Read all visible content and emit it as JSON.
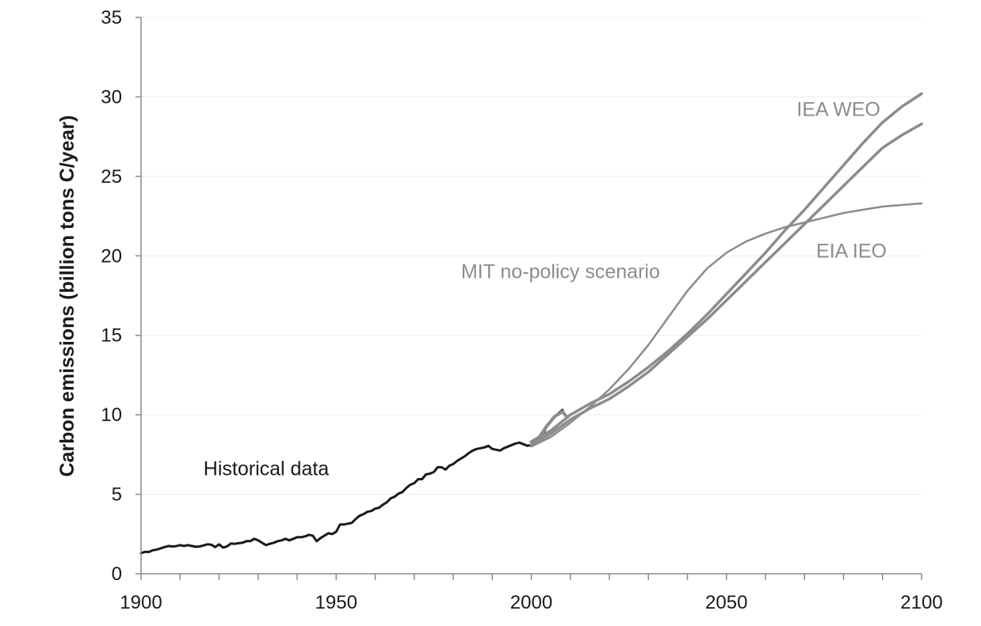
{
  "chart_data": {
    "type": "line",
    "title": "",
    "xlabel": "",
    "ylabel": "Carbon emissions (billion tons C/year)",
    "xlim": [
      1900,
      2100
    ],
    "ylim": [
      0,
      35
    ],
    "x_ticks": [
      1900,
      1950,
      2000,
      2050,
      2100
    ],
    "y_ticks": [
      0,
      5,
      10,
      15,
      20,
      25,
      30,
      35
    ],
    "grid": true,
    "legend": "none",
    "annotations": [
      {
        "text": "Historical data",
        "x": 1916,
        "y": 6.2,
        "color": "#1a1a1a"
      },
      {
        "text": "MIT no-policy scenario",
        "x": 1982,
        "y": 18.6,
        "color": "#8c8c8c"
      },
      {
        "text": "IEA WEO",
        "x": 2068,
        "y": 28.8,
        "color": "#8c8c8c"
      },
      {
        "text": "EIA IEO",
        "x": 2073,
        "y": 19.9,
        "color": "#8c8c8c"
      }
    ],
    "series": [
      {
        "color": "#1a1a1a",
        "stroke_width": 3,
        "x": [
          1900,
          1901,
          1902,
          1903,
          1904,
          1905,
          1906,
          1907,
          1908,
          1909,
          1910,
          1911,
          1912,
          1913,
          1914,
          1915,
          1916,
          1917,
          1918,
          1919,
          1920,
          1921,
          1922,
          1923,
          1924,
          1925,
          1926,
          1927,
          1928,
          1929,
          1930,
          1931,
          1932,
          1933,
          1934,
          1935,
          1936,
          1937,
          1938,
          1939,
          1940,
          1941,
          1942,
          1943,
          1944,
          1945,
          1946,
          1947,
          1948,
          1949,
          1950,
          1951,
          1952,
          1953,
          1954,
          1955,
          1956,
          1957,
          1958,
          1959,
          1960,
          1961,
          1962,
          1963,
          1964,
          1965,
          1966,
          1967,
          1968,
          1969,
          1970,
          1971,
          1972,
          1973,
          1974,
          1975,
          1976,
          1977,
          1978,
          1979,
          1980,
          1981,
          1982,
          1983,
          1984,
          1985,
          1986,
          1987,
          1988,
          1989,
          1990,
          1991,
          1992,
          1993,
          1994,
          1995,
          1996,
          1997,
          1998,
          1999,
          2000,
          2001,
          2002,
          2003,
          2004,
          2005,
          2006,
          2007,
          2008
        ],
        "y": [
          1.3,
          1.38,
          1.37,
          1.48,
          1.52,
          1.6,
          1.68,
          1.75,
          1.72,
          1.74,
          1.8,
          1.75,
          1.8,
          1.75,
          1.7,
          1.72,
          1.78,
          1.85,
          1.83,
          1.68,
          1.85,
          1.65,
          1.72,
          1.9,
          1.88,
          1.92,
          1.95,
          2.05,
          2.05,
          2.2,
          2.1,
          1.95,
          1.8,
          1.88,
          1.95,
          2.05,
          2.1,
          2.2,
          2.1,
          2.2,
          2.3,
          2.3,
          2.35,
          2.45,
          2.4,
          2.05,
          2.25,
          2.4,
          2.55,
          2.5,
          2.65,
          3.1,
          3.1,
          3.15,
          3.2,
          3.45,
          3.65,
          3.75,
          3.9,
          3.95,
          4.1,
          4.15,
          4.35,
          4.5,
          4.75,
          4.85,
          5.05,
          5.15,
          5.4,
          5.6,
          5.7,
          5.95,
          5.95,
          6.25,
          6.3,
          6.4,
          6.7,
          6.7,
          6.55,
          6.8,
          6.9,
          7.1,
          7.25,
          7.4,
          7.6,
          7.75,
          7.85,
          7.9,
          7.95,
          8.05,
          7.85,
          7.8,
          7.75,
          7.9,
          8.0,
          8.1,
          8.2,
          8.25,
          8.15,
          8.05,
          8.1,
          8.3,
          8.5,
          8.8,
          9.3,
          9.6,
          9.9,
          10.1,
          10.3
        ]
      },
      {
        "color": "#8c8c8c",
        "stroke_width": 2.5,
        "x": [
          2000,
          2005,
          2010,
          2015,
          2020,
          2025,
          2030,
          2035,
          2040,
          2045,
          2050,
          2055,
          2060,
          2065,
          2070,
          2075,
          2080,
          2085,
          2090,
          2095,
          2100
        ],
        "y": [
          8.0,
          8.6,
          9.5,
          10.5,
          11.6,
          12.9,
          14.4,
          16.1,
          17.8,
          19.2,
          20.2,
          20.9,
          21.4,
          21.8,
          22.1,
          22.4,
          22.7,
          22.9,
          23.1,
          23.2,
          23.3
        ]
      },
      {
        "color": "#8c8c8c",
        "stroke_width": 3.5,
        "x": [
          2000,
          2005,
          2010,
          2015,
          2020,
          2025,
          2030,
          2035,
          2040,
          2045,
          2050,
          2055,
          2060,
          2065,
          2070,
          2075,
          2080,
          2085,
          2090,
          2095,
          2100
        ],
        "y": [
          8.3,
          9.0,
          10.0,
          10.7,
          11.3,
          12.1,
          13.0,
          14.0,
          15.1,
          16.3,
          17.6,
          18.9,
          20.2,
          21.6,
          22.9,
          24.3,
          25.7,
          27.1,
          28.4,
          29.4,
          30.2
        ]
      },
      {
        "color": "#8c8c8c",
        "stroke_width": 3.5,
        "x": [
          2000,
          2005,
          2010,
          2015,
          2020,
          2025,
          2030,
          2035,
          2040,
          2045,
          2050,
          2055,
          2060,
          2065,
          2070,
          2075,
          2080,
          2085,
          2090,
          2095,
          2100
        ],
        "y": [
          8.1,
          8.8,
          9.7,
          10.4,
          11.0,
          11.8,
          12.7,
          13.8,
          14.9,
          16.0,
          17.2,
          18.4,
          19.6,
          20.8,
          22.0,
          23.2,
          24.4,
          25.6,
          26.8,
          27.6,
          28.3
        ]
      },
      {
        "color": "#8c8c8c",
        "stroke_width": 4,
        "x": [
          2000,
          2002,
          2004,
          2006,
          2008,
          2009
        ],
        "y": [
          8.3,
          8.6,
          9.3,
          9.9,
          10.2,
          9.9
        ]
      }
    ]
  }
}
